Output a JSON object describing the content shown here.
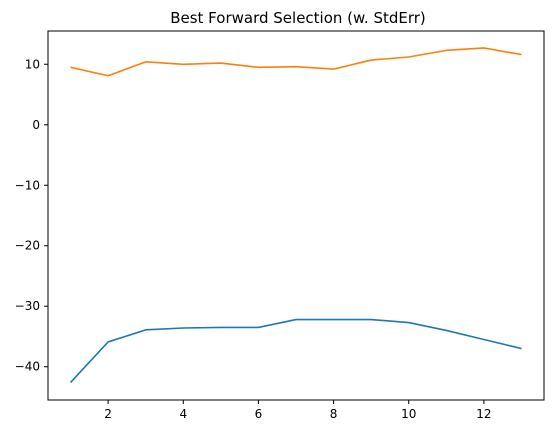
{
  "chart_data": {
    "type": "line",
    "title": "Best Forward Selection (w. StdErr)",
    "xlabel": "",
    "ylabel": "",
    "xlim": [
      0.4,
      13.6
    ],
    "ylim": [
      -45.5,
      15.5
    ],
    "x_ticks": [
      2,
      4,
      6,
      8,
      10,
      12
    ],
    "x_tick_labels": [
      "2",
      "4",
      "6",
      "8",
      "10",
      "12"
    ],
    "y_ticks": [
      10,
      0,
      -10,
      -20,
      -30,
      -40
    ],
    "y_tick_labels": [
      "10",
      "0",
      "−10",
      "−20",
      "−30",
      "−40"
    ],
    "grid": false,
    "legend": "none",
    "x": [
      1,
      2,
      3,
      4,
      5,
      6,
      7,
      8,
      9,
      10,
      11,
      12,
      13
    ],
    "series": [
      {
        "color": "#1f77b4",
        "values": [
          -42.6,
          -35.9,
          -33.9,
          -33.6,
          -33.5,
          -33.5,
          -32.2,
          -32.2,
          -32.2,
          -32.7,
          -34.0,
          -35.5,
          -37.0
        ]
      },
      {
        "color": "#ff7f0e",
        "values": [
          9.5,
          8.1,
          10.4,
          10.0,
          10.2,
          9.5,
          9.6,
          9.2,
          10.7,
          11.2,
          12.3,
          12.7,
          11.6
        ]
      }
    ]
  }
}
